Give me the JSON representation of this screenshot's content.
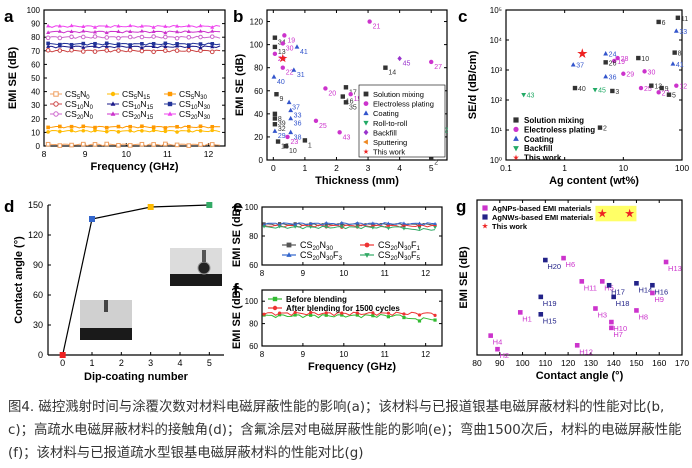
{
  "colors": {
    "axis": "#000000",
    "highlight": "#ffff66",
    "caption": "#333333"
  },
  "caption": "图4. 磁控溅射时间与涂覆次数对材料电磁屏蔽性能的影响(a)；该材料与已报道银基电磁屏蔽材料的性能对比(b, c)；高疏水电磁屏蔽材料的接触角(d)；含氟涂层对电磁屏蔽性能的影响(e)；弯曲1500次后，材料的电磁屏蔽性能(f)；该材料与已报道疏水型银基电磁屏蔽材料的性能对比(g)",
  "chart_data": [
    {
      "panel": "a",
      "type": "line",
      "xlabel": "Frequency (GHz)",
      "ylabel": "EMI SE (dB)",
      "xlim": [
        8,
        12.4
      ],
      "ylim": [
        0,
        100
      ],
      "xticks": [
        8,
        9,
        10,
        11,
        12
      ],
      "yticks": [
        0,
        10,
        20,
        30,
        40,
        50,
        60,
        70,
        80,
        90,
        100
      ],
      "legend_position": "lower-left, inside",
      "series": [
        {
          "name": "CS5N0",
          "value": 1,
          "color": "#f0a060",
          "marker": "square-open"
        },
        {
          "name": "CS5N15",
          "value": 11,
          "color": "#ffbb00",
          "marker": "circle"
        },
        {
          "name": "CS5N30",
          "value": 14,
          "color": "#ff9900",
          "marker": "square"
        },
        {
          "name": "CS10N0",
          "value": 70,
          "color": "#cc4444",
          "marker": "circle-open"
        },
        {
          "name": "CS10N15",
          "value": 73,
          "color": "#1a1a8a",
          "marker": "triangle"
        },
        {
          "name": "CS10N30",
          "value": 75,
          "color": "#223399",
          "marker": "square"
        },
        {
          "name": "CS20N0",
          "value": 80,
          "color": "#cc66cc",
          "marker": "circle-open"
        },
        {
          "name": "CS20N15",
          "value": 84,
          "color": "#cc33cc",
          "marker": "triangle"
        },
        {
          "name": "CS20N30",
          "value": 88,
          "color": "#ee44ee",
          "marker": "triangle"
        }
      ]
    },
    {
      "panel": "b",
      "type": "scatter",
      "xlabel": "Thickness (mm)",
      "ylabel": "EMI SE (dB)",
      "xlim": [
        -0.2,
        5.5
      ],
      "ylim": [
        0,
        130
      ],
      "xticks": [
        0,
        1,
        2,
        3,
        4,
        5
      ],
      "yticks": [
        0,
        20,
        40,
        60,
        80,
        100,
        120
      ],
      "legend_position": "lower-right",
      "legend": [
        {
          "label": "Solution mixing",
          "color": "#333333",
          "marker": "square"
        },
        {
          "label": "Electroless plating",
          "color": "#cc33cc",
          "marker": "circle"
        },
        {
          "label": "Coating",
          "color": "#3355cc",
          "marker": "triangle"
        },
        {
          "label": "Roll-to-roll",
          "color": "#22aa66",
          "marker": "triangle-down"
        },
        {
          "label": "Backfill",
          "color": "#9933cc",
          "marker": "diamond"
        },
        {
          "label": "Sputtering",
          "color": "#ee8822",
          "marker": "triangle-left"
        },
        {
          "label": "This work",
          "color": "#ee2222",
          "marker": "star"
        }
      ],
      "points": [
        {
          "label": "21",
          "x": 3.05,
          "y": 120,
          "g": 1
        },
        {
          "label": "19",
          "x": 0.35,
          "y": 108,
          "g": 1
        },
        {
          "label": "41",
          "x": 0.75,
          "y": 98,
          "g": 2
        },
        {
          "label": "34",
          "x": 0.05,
          "y": 106,
          "g": 0
        },
        {
          "label": "13",
          "x": 0.05,
          "y": 98,
          "g": 0
        },
        {
          "label": "30",
          "x": 0.3,
          "y": 101,
          "g": 1
        },
        {
          "label": "28",
          "x": 0.05,
          "y": 92,
          "g": 1
        },
        {
          "label": "22",
          "x": 0.3,
          "y": 80,
          "g": 1
        },
        {
          "label": "27",
          "x": 5.0,
          "y": 85,
          "g": 1
        },
        {
          "label": "45",
          "x": 4.0,
          "y": 88,
          "g": 4
        },
        {
          "label": "40",
          "x": 0.02,
          "y": 72,
          "g": 2
        },
        {
          "label": "31",
          "x": 0.65,
          "y": 78,
          "g": 2
        },
        {
          "label": "14",
          "x": 3.55,
          "y": 80,
          "g": 0
        },
        {
          "label": "9",
          "x": 0.1,
          "y": 57,
          "g": 0
        },
        {
          "label": "17",
          "x": 2.3,
          "y": 63,
          "g": 0
        },
        {
          "label": "16",
          "x": 2.2,
          "y": 55,
          "g": 0
        },
        {
          "label": "20",
          "x": 1.65,
          "y": 62,
          "g": 1
        },
        {
          "label": "11",
          "x": 2.45,
          "y": 57,
          "g": 1
        },
        {
          "label": "18",
          "x": 2.75,
          "y": 54,
          "g": 1
        },
        {
          "label": "35",
          "x": 2.3,
          "y": 50,
          "g": 0
        },
        {
          "label": "37",
          "x": 0.5,
          "y": 50,
          "g": 2
        },
        {
          "label": "33",
          "x": 0.55,
          "y": 43,
          "g": 2
        },
        {
          "label": "36",
          "x": 0.55,
          "y": 36,
          "g": 2
        },
        {
          "label": "8",
          "x": 0.05,
          "y": 40,
          "g": 0
        },
        {
          "label": "39",
          "x": 0.05,
          "y": 36,
          "g": 0
        },
        {
          "label": "25",
          "x": 1.35,
          "y": 34,
          "g": 1
        },
        {
          "label": "32",
          "x": 0.05,
          "y": 31,
          "g": 0
        },
        {
          "label": "29",
          "x": 0.05,
          "y": 25,
          "g": 2
        },
        {
          "label": "38",
          "x": 0.55,
          "y": 24,
          "g": 2
        },
        {
          "label": "23",
          "x": 0.45,
          "y": 20,
          "g": 1
        },
        {
          "label": "43",
          "x": 2.1,
          "y": 24,
          "g": 1
        },
        {
          "label": "15",
          "x": 0.15,
          "y": 16,
          "g": 0
        },
        {
          "label": "10",
          "x": 0.4,
          "y": 12,
          "g": 0
        },
        {
          "label": "1",
          "x": 1.0,
          "y": 17,
          "g": 0
        },
        {
          "label": "42",
          "x": 5.2,
          "y": 30,
          "g": 3
        },
        {
          "label": "44",
          "x": 3.05,
          "y": 14,
          "g": 5
        },
        {
          "label": "2",
          "x": 5.0,
          "y": 2,
          "g": 0
        },
        {
          "label": "This work",
          "x": 0.3,
          "y": 88,
          "g": 6
        }
      ]
    },
    {
      "panel": "c",
      "type": "scatter",
      "xlabel": "Ag content (wt%)",
      "ylabel": "SE/d (dB/cm)",
      "xscale": "log",
      "yscale": "log",
      "xlim": [
        0.1,
        100
      ],
      "ylim": [
        1,
        100000
      ],
      "xtick_labels": [
        "0.1",
        "1",
        "10",
        "100"
      ],
      "ytick_labels": [
        "10⁰",
        "10¹",
        "10²",
        "10³",
        "10⁴",
        "10⁵"
      ],
      "legend_position": "lower-right",
      "legend": [
        {
          "label": "Solution mixing",
          "color": "#333333",
          "marker": "square"
        },
        {
          "label": "Electroless plating",
          "color": "#cc33cc",
          "marker": "circle"
        },
        {
          "label": "Coating",
          "color": "#3355cc",
          "marker": "triangle"
        },
        {
          "label": "Backfill",
          "color": "#22aa66",
          "marker": "triangle-down"
        },
        {
          "label": "This work",
          "color": "#ee2222",
          "marker": "star"
        }
      ],
      "points": [
        {
          "label": "6",
          "x": 40,
          "y": 40000,
          "g": 0
        },
        {
          "label": "11",
          "x": 85,
          "y": 55000,
          "g": 0
        },
        {
          "label": "33",
          "x": 80,
          "y": 20000,
          "g": 2
        },
        {
          "label": "8",
          "x": 75,
          "y": 3800,
          "g": 0
        },
        {
          "label": "41",
          "x": 70,
          "y": 1600,
          "g": 2
        },
        {
          "label": "24",
          "x": 5,
          "y": 3500,
          "g": 2
        },
        {
          "label": "19",
          "x": 7,
          "y": 2000,
          "g": 1
        },
        {
          "label": "10",
          "x": 18,
          "y": 2500,
          "g": 0
        },
        {
          "label": "26",
          "x": 5,
          "y": 1800,
          "g": 0
        },
        {
          "label": "28",
          "x": 8,
          "y": 2500,
          "g": 1
        },
        {
          "label": "37",
          "x": 1.4,
          "y": 1500,
          "g": 2
        },
        {
          "label": "36",
          "x": 5,
          "y": 600,
          "g": 2
        },
        {
          "label": "29",
          "x": 10,
          "y": 750,
          "g": 1
        },
        {
          "label": "30",
          "x": 23,
          "y": 900,
          "g": 1
        },
        {
          "label": "43",
          "x": 0.2,
          "y": 150,
          "g": 3
        },
        {
          "label": "40",
          "x": 1.5,
          "y": 250,
          "g": 0
        },
        {
          "label": "45",
          "x": 3.3,
          "y": 220,
          "g": 3
        },
        {
          "label": "3",
          "x": 6.5,
          "y": 200,
          "g": 0
        },
        {
          "label": "25",
          "x": 20,
          "y": 250,
          "g": 1
        },
        {
          "label": "13",
          "x": 30,
          "y": 300,
          "g": 0
        },
        {
          "label": "9",
          "x": 45,
          "y": 250,
          "g": 0
        },
        {
          "label": "27",
          "x": 40,
          "y": 180,
          "g": 1
        },
        {
          "label": "5",
          "x": 60,
          "y": 150,
          "g": 0
        },
        {
          "label": "12",
          "x": 80,
          "y": 300,
          "g": 1
        },
        {
          "label": "2",
          "x": 4,
          "y": 12,
          "g": 0
        },
        {
          "label": "This work",
          "x": 2.0,
          "y": 3500,
          "g": 4
        }
      ]
    },
    {
      "panel": "d",
      "type": "line",
      "xlabel": "Dip-coating number",
      "ylabel": "Contact angle (°)",
      "xlim": [
        -0.5,
        5.5
      ],
      "ylim": [
        0,
        150
      ],
      "xticks": [
        0,
        1,
        2,
        3,
        4,
        5
      ],
      "yticks": [
        0,
        30,
        60,
        90,
        120,
        150
      ],
      "points": [
        {
          "x": 0,
          "y": 0,
          "color": "#ee2222"
        },
        {
          "x": 1,
          "y": 136,
          "color": "#3366cc"
        },
        {
          "x": 3,
          "y": 148,
          "color": "#ffbb00"
        },
        {
          "x": 5,
          "y": 150,
          "color": "#33aa66"
        }
      ]
    },
    {
      "panel": "e",
      "type": "line",
      "xlabel": "",
      "ylabel": "EMI SE (dB)",
      "xlim": [
        8,
        12.4
      ],
      "ylim": [
        60,
        100
      ],
      "xticks": [
        8,
        9,
        10,
        11,
        12
      ],
      "yticks": [
        60,
        80,
        100
      ],
      "legend_position": "bottom, inside",
      "series": [
        {
          "name": "CS20N30",
          "value": 88,
          "color": "#555555",
          "marker": "square"
        },
        {
          "name": "CS20N30F1",
          "value": 87,
          "color": "#ee3333",
          "marker": "circle"
        },
        {
          "name": "CS20N30F3",
          "value": 88.5,
          "color": "#3366cc",
          "marker": "triangle"
        },
        {
          "name": "CS20N30F5",
          "value": 86,
          "color": "#33aa66",
          "marker": "triangle-down"
        }
      ]
    },
    {
      "panel": "f",
      "type": "line",
      "xlabel": "Frequency (GHz)",
      "ylabel": "EMI SE (dB)",
      "xlim": [
        8,
        12.4
      ],
      "ylim": [
        60,
        110
      ],
      "xticks": [
        8,
        9,
        10,
        11,
        12
      ],
      "yticks": [
        60,
        80,
        100
      ],
      "legend_position": "top, inside",
      "series": [
        {
          "name": "Before blending",
          "value": 87,
          "color": "#33bb33",
          "marker": "square"
        },
        {
          "name": "After blending for 1500 cycles",
          "value": 89,
          "color": "#ee3333",
          "marker": "circle"
        }
      ]
    },
    {
      "panel": "g",
      "type": "scatter",
      "xlabel": "Contact angle (°)",
      "ylabel": "EMI SE (dB)",
      "xlim": [
        80,
        170
      ],
      "ylim": [
        15,
        95
      ],
      "xticks": [
        80,
        90,
        100,
        110,
        120,
        130,
        140,
        150,
        160,
        170
      ],
      "yticks": [],
      "legend_position": "top-left",
      "legend": [
        {
          "label": "AgNPs-based EMI materials",
          "color": "#cc33cc",
          "marker": "square"
        },
        {
          "label": "AgNWs-based EMI materials",
          "color": "#222288",
          "marker": "square"
        },
        {
          "label": "This work",
          "color": "#ee2222",
          "marker": "star"
        }
      ],
      "points": [
        {
          "label": "H13",
          "x": 163,
          "y": 63,
          "g": 0
        },
        {
          "label": "H20",
          "x": 110,
          "y": 64,
          "g": 1
        },
        {
          "label": "H6",
          "x": 118,
          "y": 65,
          "g": 0
        },
        {
          "label": "H11",
          "x": 126,
          "y": 53,
          "g": 0
        },
        {
          "label": "H5",
          "x": 135,
          "y": 53,
          "g": 0
        },
        {
          "label": "H17",
          "x": 138,
          "y": 51,
          "g": 1
        },
        {
          "label": "H14",
          "x": 150,
          "y": 52,
          "g": 1
        },
        {
          "label": "H16",
          "x": 157,
          "y": 51,
          "g": 1
        },
        {
          "label": "H19",
          "x": 108,
          "y": 45,
          "g": 1
        },
        {
          "label": "H18",
          "x": 140,
          "y": 45,
          "g": 1
        },
        {
          "label": "H9",
          "x": 157,
          "y": 47,
          "g": 0
        },
        {
          "label": "H1",
          "x": 99,
          "y": 37,
          "g": 0
        },
        {
          "label": "H15",
          "x": 108,
          "y": 36,
          "g": 1
        },
        {
          "label": "H3",
          "x": 132,
          "y": 39,
          "g": 0
        },
        {
          "label": "H8",
          "x": 150,
          "y": 38,
          "g": 0
        },
        {
          "label": "H10",
          "x": 139,
          "y": 32,
          "g": 0
        },
        {
          "label": "H7",
          "x": 139,
          "y": 29,
          "g": 0
        },
        {
          "label": "H4",
          "x": 86,
          "y": 25,
          "g": 0
        },
        {
          "label": "H12",
          "x": 124,
          "y": 20,
          "g": 0
        },
        {
          "label": "H2",
          "x": 89,
          "y": 18,
          "g": 0
        },
        {
          "label": "This work",
          "x": 135,
          "y": 88,
          "g": 2
        },
        {
          "label": "This work",
          "x": 147,
          "y": 88,
          "g": 2
        }
      ]
    }
  ]
}
